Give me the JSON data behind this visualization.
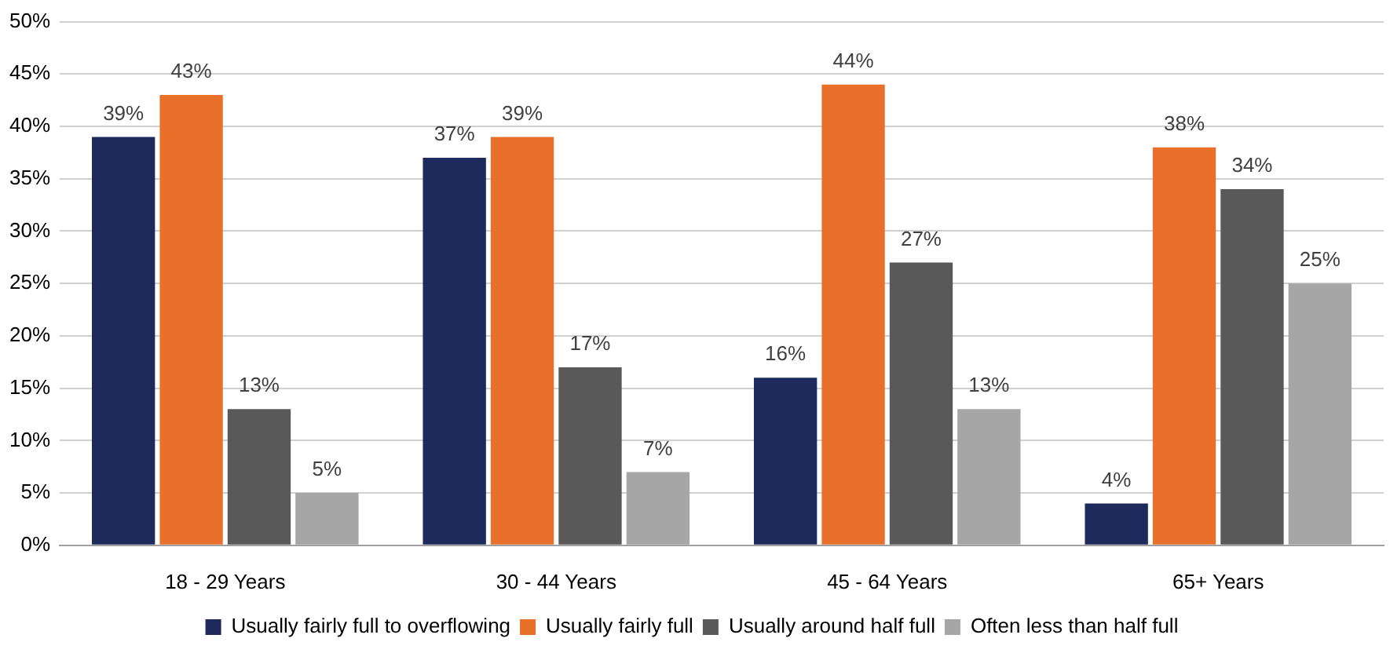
{
  "chart_data": {
    "type": "bar",
    "categories": [
      "18 - 29 Years",
      "30 - 44 Years",
      "45 - 64 Years",
      "65+ Years"
    ],
    "series": [
      {
        "name": "Usually fairly full to overflowing",
        "color": "#1f2a5c",
        "values": [
          39,
          37,
          16,
          4
        ],
        "value_labels": [
          "39%",
          "37%",
          "16%",
          "4%"
        ]
      },
      {
        "name": "Usually fairly full",
        "color": "#e8702a",
        "values": [
          43,
          39,
          44,
          38
        ],
        "value_labels": [
          "43%",
          "39%",
          "44%",
          "38%"
        ]
      },
      {
        "name": "Usually around half full",
        "color": "#595959",
        "values": [
          13,
          17,
          27,
          34
        ],
        "value_labels": [
          "13%",
          "17%",
          "27%",
          "34%"
        ]
      },
      {
        "name": "Often less than half full",
        "color": "#a6a6a6",
        "values": [
          5,
          7,
          13,
          25
        ],
        "value_labels": [
          "5%",
          "7%",
          "13%",
          "25%"
        ]
      }
    ],
    "ylim": [
      0,
      50
    ],
    "yticks": [
      {
        "value": 0,
        "label": "0%"
      },
      {
        "value": 5,
        "label": "5%"
      },
      {
        "value": 10,
        "label": "10%"
      },
      {
        "value": 15,
        "label": "15%"
      },
      {
        "value": 20,
        "label": "20%"
      },
      {
        "value": 25,
        "label": "25%"
      },
      {
        "value": 30,
        "label": "30%"
      },
      {
        "value": 35,
        "label": "35%"
      },
      {
        "value": 40,
        "label": "40%"
      },
      {
        "value": 45,
        "label": "45%"
      },
      {
        "value": 50,
        "label": "50%"
      }
    ],
    "grid": "y",
    "legend": "bottom"
  }
}
